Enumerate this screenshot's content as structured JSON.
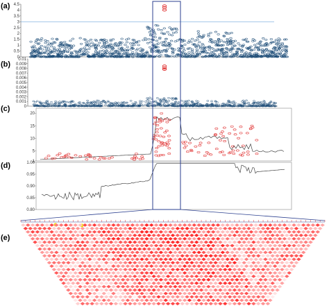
{
  "figure": {
    "panels": [
      "(a)",
      "(b)",
      "(c)",
      "(d)",
      "(e)"
    ]
  },
  "colors": {
    "axis": "#555555",
    "manhattan_blue": "#1f4e79",
    "threshold_line": "#6fa8dc",
    "highlight_box": "#2b3f8f",
    "ld_red": "#e03030",
    "ld_yellow": "#f2e000",
    "lines_gray": "#444444"
  },
  "chart_data": [
    {
      "panel": "(a)",
      "type": "scatter",
      "title": "",
      "xlabel": "",
      "ylabel": "",
      "yticks": [
        "0",
        "0.5",
        "1",
        "1.5",
        "2",
        "2.5",
        "3",
        "3.5",
        "4",
        "4.5"
      ],
      "ylim": [
        0,
        4.5
      ],
      "threshold": 3.0,
      "grid": false,
      "peak_points": [
        4.0,
        4.2,
        4.35
      ]
    },
    {
      "panel": "(b)",
      "type": "scatter",
      "title": "",
      "xlabel": "",
      "ylabel": "",
      "yticks": [
        "0",
        "0.001",
        "0.002",
        "0.003",
        "0.004",
        "0.005",
        "0.006",
        "0.007",
        "0.008",
        "0.009",
        "0.01"
      ],
      "ylim": [
        0,
        0.01
      ],
      "grid": false,
      "peak_points": [
        0.0078,
        0.0081,
        0.0085
      ]
    },
    {
      "panel": "(c)",
      "type": "line",
      "title": "",
      "xlabel": "",
      "ylabel": "",
      "yticks": [
        "1",
        "5",
        "10",
        "15",
        "20"
      ],
      "ylim": [
        1,
        22
      ],
      "grid": false
    },
    {
      "panel": "(d)",
      "type": "line",
      "title": "",
      "xlabel": "",
      "ylabel": "",
      "yticks": [
        "0.80",
        "0.85",
        "0.90",
        "0.95",
        "1.00"
      ],
      "ylim": [
        0.8,
        1.0
      ],
      "grid": false
    },
    {
      "panel": "(e)",
      "type": "heatmap",
      "title": "",
      "xlabel": "",
      "ylabel": "",
      "grid": false
    }
  ]
}
